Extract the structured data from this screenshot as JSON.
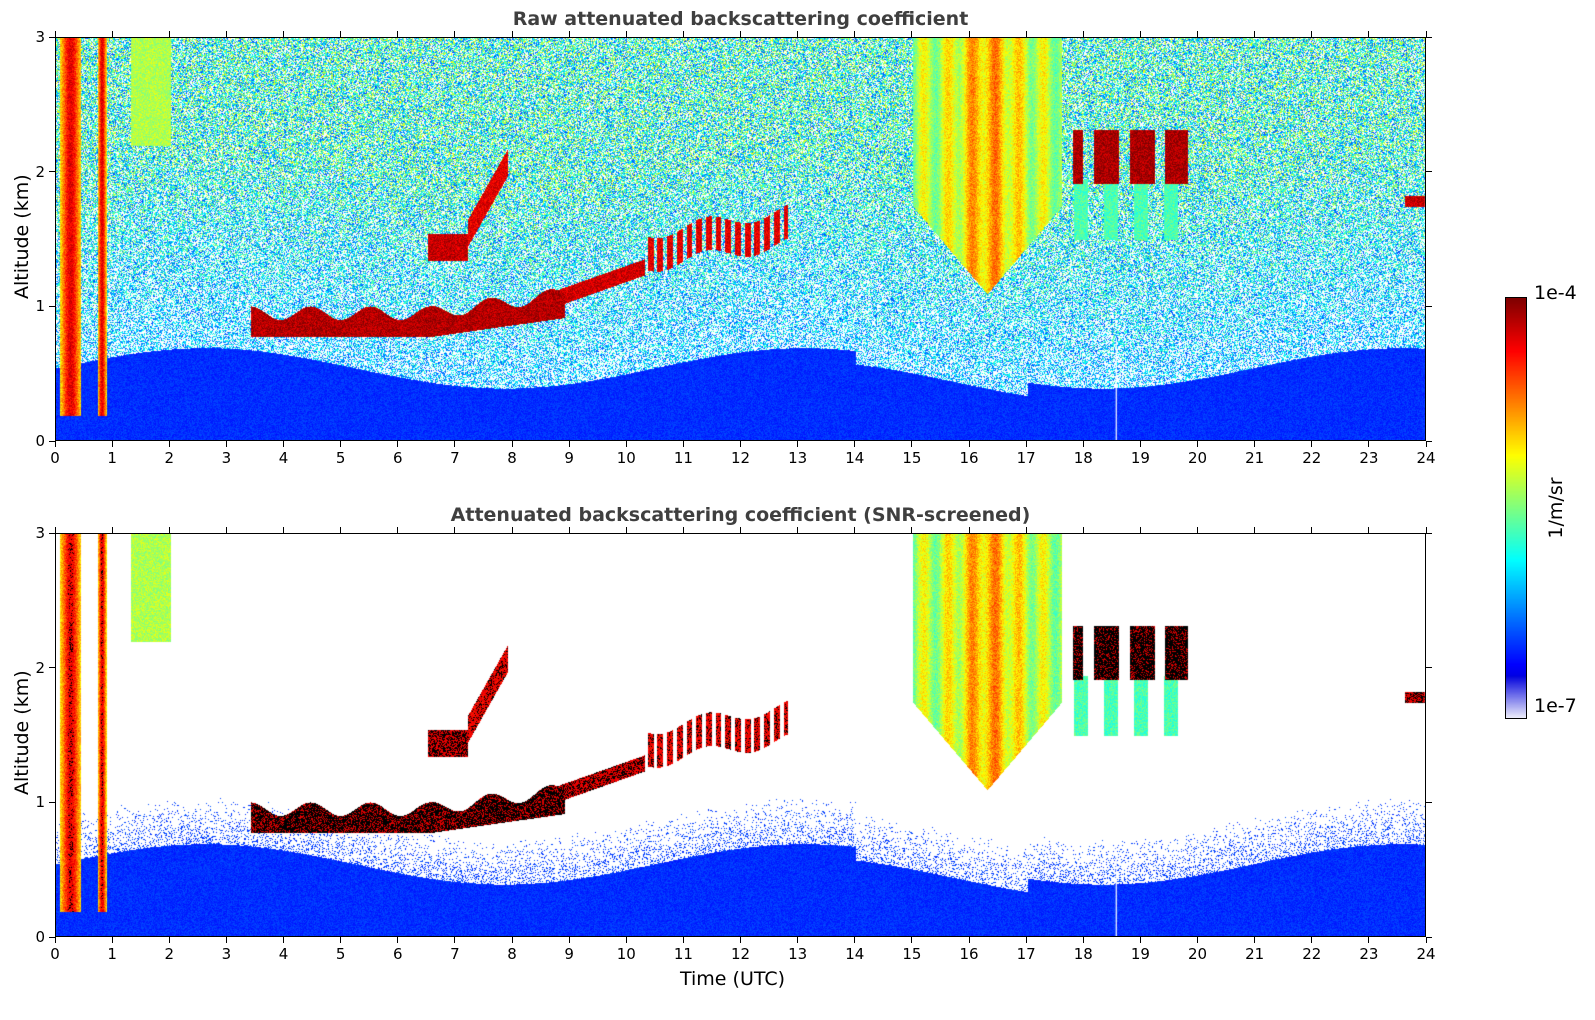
{
  "chart_data": [
    {
      "type": "heatmap",
      "title": "Raw attenuated backscattering coefficient",
      "xlabel": "",
      "ylabel": "Altitude (km)",
      "xlim": [
        0,
        24
      ],
      "ylim": [
        0,
        3
      ],
      "x_ticks": [
        "0",
        "1",
        "2",
        "3",
        "4",
        "5",
        "6",
        "7",
        "8",
        "9",
        "10",
        "11",
        "12",
        "13",
        "14",
        "15",
        "16",
        "17",
        "18",
        "19",
        "20",
        "21",
        "22",
        "23",
        "24"
      ],
      "y_ticks": [
        "0",
        "1",
        "2",
        "3"
      ],
      "features": [
        {
          "desc": "boundary layer aerosol",
          "x_range": [
            0,
            24
          ],
          "y_range": [
            0,
            0.5
          ]
        },
        {
          "desc": "low cloud layer",
          "x_range": [
            3.5,
            8.8
          ],
          "y_range": [
            0.75,
            1.0
          ]
        },
        {
          "desc": "rising cloud layer",
          "x_range": [
            8.8,
            12.8
          ],
          "y_range": [
            1.0,
            1.7
          ]
        },
        {
          "desc": "mid cloud",
          "x_range": [
            18,
            19.7
          ],
          "y_range": [
            1.9,
            2.3
          ]
        },
        {
          "desc": "fall streaks",
          "x_range": [
            15,
            17.5
          ],
          "y_range": [
            1.1,
            3.0
          ]
        }
      ]
    },
    {
      "type": "heatmap",
      "title": "Attenuated backscattering coefficient (SNR-screened)",
      "xlabel": "Time (UTC)",
      "ylabel": "Altitude (km)",
      "xlim": [
        0,
        24
      ],
      "ylim": [
        0,
        3
      ],
      "x_ticks": [
        "0",
        "1",
        "2",
        "3",
        "4",
        "5",
        "6",
        "7",
        "8",
        "9",
        "10",
        "11",
        "12",
        "13",
        "14",
        "15",
        "16",
        "17",
        "18",
        "19",
        "20",
        "21",
        "22",
        "23",
        "24"
      ],
      "y_ticks": [
        "0",
        "1",
        "2",
        "3"
      ]
    }
  ],
  "colorbar": {
    "max_label": "1e-4",
    "min_label": "1e-7",
    "unit_label": "1/m/sr",
    "scale": "log",
    "colormap": "jet"
  }
}
